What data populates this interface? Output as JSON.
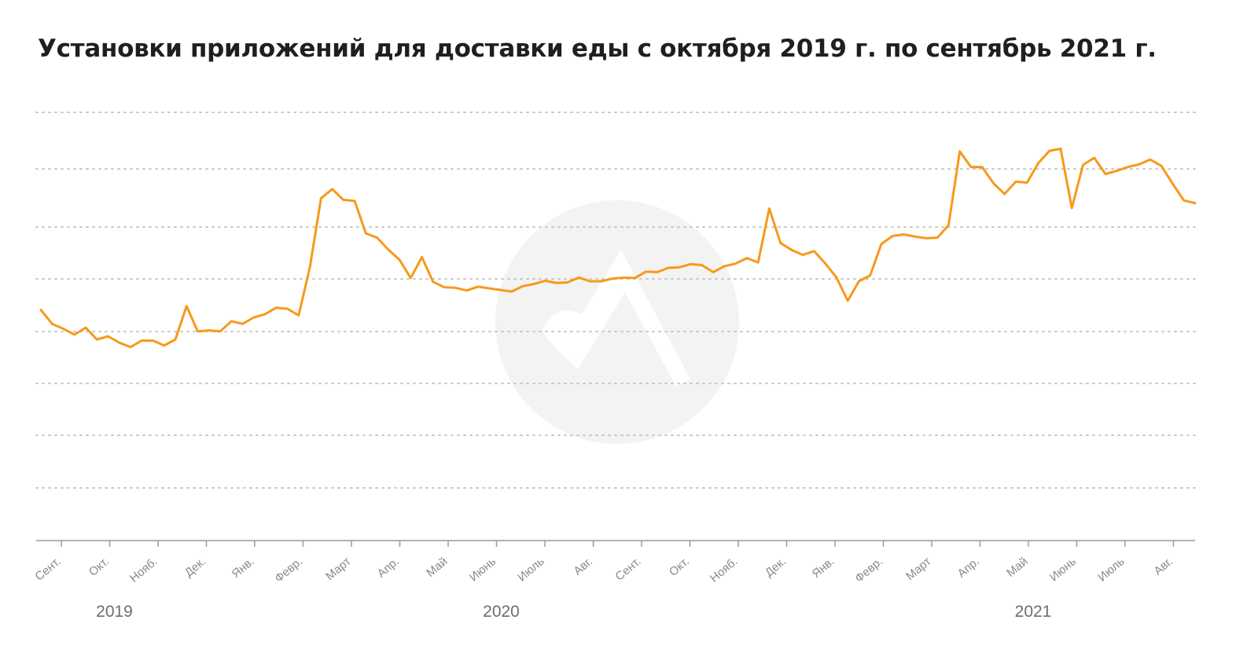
{
  "title": "Установки приложений для доставки еды с октября 2019 г. по сентябрь 2021 г.",
  "chart_data": {
    "type": "line",
    "title": "Установки приложений для доставки еды с октября 2019 г. по сентябрь 2021 г.",
    "xlabel": "",
    "ylabel": "",
    "grid": true,
    "y_tick_labels_shown": false,
    "line_color": "#f7991c",
    "month_labels": [
      "Сент.",
      "Окт.",
      "Нояб.",
      "Дек.",
      "Янв.",
      "Февр.",
      "Март",
      "Апр.",
      "Май",
      "Июнь",
      "Июль",
      "Авг.",
      "Сент.",
      "Окт.",
      "Нояб.",
      "Дек.",
      "Янв.",
      "Февр.",
      "Март",
      "Апр.",
      "Май",
      "Июнь",
      "Июль",
      "Авг."
    ],
    "year_labels": [
      {
        "label": "2019",
        "month_index": 1
      },
      {
        "label": "2020",
        "month_index": 9
      },
      {
        "label": "2021",
        "month_index": 20
      }
    ],
    "series": [
      {
        "values": [
          4.28,
          4.02,
          3.93,
          3.82,
          3.95,
          3.73,
          3.79,
          3.67,
          3.59,
          3.71,
          3.71,
          3.62,
          3.73,
          4.35,
          3.88,
          3.9,
          3.88,
          4.07,
          4.02,
          4.14,
          4.2,
          4.32,
          4.3,
          4.18,
          5.07,
          6.35,
          6.52,
          6.32,
          6.3,
          5.7,
          5.62,
          5.4,
          5.21,
          4.87,
          5.26,
          4.8,
          4.7,
          4.69,
          4.64,
          4.71,
          4.68,
          4.65,
          4.62,
          4.72,
          4.76,
          4.82,
          4.78,
          4.79,
          4.88,
          4.81,
          4.81,
          4.86,
          4.88,
          4.87,
          4.99,
          4.98,
          5.06,
          5.07,
          5.13,
          5.11,
          4.98,
          5.09,
          5.14,
          5.24,
          5.16,
          6.16,
          5.52,
          5.39,
          5.3,
          5.37,
          5.14,
          4.88,
          4.45,
          4.81,
          4.92,
          5.5,
          5.65,
          5.68,
          5.64,
          5.61,
          5.62,
          5.85,
          7.22,
          6.93,
          6.93,
          6.63,
          6.43,
          6.66,
          6.64,
          7.0,
          7.23,
          7.27,
          6.17,
          6.97,
          7.1,
          6.8,
          6.86,
          6.93,
          6.98,
          7.07,
          6.95,
          6.62,
          6.31,
          6.26
        ]
      }
    ]
  }
}
